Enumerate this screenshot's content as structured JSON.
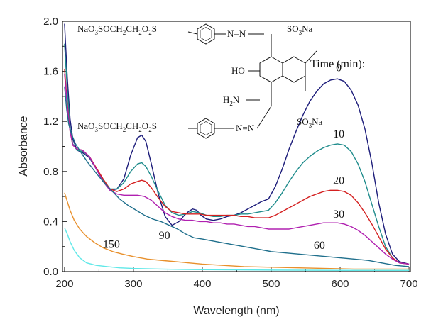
{
  "chart_data": {
    "type": "line",
    "title": "",
    "xlabel": "Wavelength (nm)",
    "ylabel": "Absorbance",
    "xlim": [
      197,
      702
    ],
    "ylim": [
      0.0,
      2.0
    ],
    "xticks": [
      "200",
      "300",
      "400",
      "500",
      "600",
      "700"
    ],
    "yticks": [
      "0.0",
      "0.4",
      "0.8",
      "1.2",
      "1.6",
      "2.0"
    ],
    "grid": false,
    "legend_title": "Time (min):",
    "series": [
      {
        "name": "0",
        "color": "#1c1c7a",
        "points": [
          [
            200,
            1.98
          ],
          [
            204,
            1.55
          ],
          [
            208,
            1.22
          ],
          [
            212,
            1.06
          ],
          [
            218,
            0.97
          ],
          [
            226,
            0.95
          ],
          [
            236,
            0.91
          ],
          [
            246,
            0.82
          ],
          [
            256,
            0.72
          ],
          [
            266,
            0.65
          ],
          [
            276,
            0.66
          ],
          [
            286,
            0.74
          ],
          [
            296,
            0.93
          ],
          [
            306,
            1.07
          ],
          [
            312,
            1.09
          ],
          [
            318,
            1.04
          ],
          [
            326,
            0.86
          ],
          [
            336,
            0.62
          ],
          [
            346,
            0.44
          ],
          [
            356,
            0.37
          ],
          [
            366,
            0.4
          ],
          [
            374,
            0.45
          ],
          [
            380,
            0.48
          ],
          [
            386,
            0.5
          ],
          [
            392,
            0.49
          ],
          [
            398,
            0.45
          ],
          [
            406,
            0.42
          ],
          [
            416,
            0.41
          ],
          [
            426,
            0.42
          ],
          [
            436,
            0.44
          ],
          [
            446,
            0.45
          ],
          [
            456,
            0.47
          ],
          [
            466,
            0.5
          ],
          [
            476,
            0.53
          ],
          [
            486,
            0.56
          ],
          [
            496,
            0.58
          ],
          [
            506,
            0.68
          ],
          [
            516,
            0.82
          ],
          [
            526,
            0.98
          ],
          [
            536,
            1.12
          ],
          [
            546,
            1.25
          ],
          [
            556,
            1.36
          ],
          [
            566,
            1.44
          ],
          [
            576,
            1.5
          ],
          [
            586,
            1.53
          ],
          [
            596,
            1.54
          ],
          [
            606,
            1.52
          ],
          [
            616,
            1.45
          ],
          [
            626,
            1.33
          ],
          [
            636,
            1.14
          ],
          [
            646,
            0.87
          ],
          [
            656,
            0.55
          ],
          [
            666,
            0.3
          ],
          [
            676,
            0.14
          ],
          [
            686,
            0.08
          ],
          [
            700,
            0.06
          ]
        ]
      },
      {
        "name": "10",
        "color": "#1f8c8c",
        "points": [
          [
            200,
            1.82
          ],
          [
            204,
            1.45
          ],
          [
            208,
            1.15
          ],
          [
            212,
            1.02
          ],
          [
            218,
            0.97
          ],
          [
            226,
            0.96
          ],
          [
            236,
            0.92
          ],
          [
            246,
            0.82
          ],
          [
            256,
            0.73
          ],
          [
            266,
            0.66
          ],
          [
            276,
            0.66
          ],
          [
            286,
            0.71
          ],
          [
            296,
            0.8
          ],
          [
            306,
            0.86
          ],
          [
            312,
            0.87
          ],
          [
            318,
            0.84
          ],
          [
            326,
            0.76
          ],
          [
            336,
            0.64
          ],
          [
            346,
            0.53
          ],
          [
            356,
            0.47
          ],
          [
            366,
            0.45
          ],
          [
            376,
            0.46
          ],
          [
            386,
            0.48
          ],
          [
            396,
            0.47
          ],
          [
            406,
            0.45
          ],
          [
            416,
            0.44
          ],
          [
            426,
            0.44
          ],
          [
            436,
            0.45
          ],
          [
            446,
            0.45
          ],
          [
            456,
            0.46
          ],
          [
            466,
            0.46
          ],
          [
            476,
            0.47
          ],
          [
            486,
            0.48
          ],
          [
            496,
            0.49
          ],
          [
            506,
            0.55
          ],
          [
            516,
            0.63
          ],
          [
            526,
            0.72
          ],
          [
            536,
            0.8
          ],
          [
            546,
            0.87
          ],
          [
            556,
            0.92
          ],
          [
            566,
            0.96
          ],
          [
            576,
            0.99
          ],
          [
            586,
            1.01
          ],
          [
            596,
            1.02
          ],
          [
            606,
            1.01
          ],
          [
            616,
            0.96
          ],
          [
            626,
            0.86
          ],
          [
            636,
            0.72
          ],
          [
            646,
            0.54
          ],
          [
            656,
            0.36
          ],
          [
            666,
            0.2
          ],
          [
            676,
            0.11
          ],
          [
            686,
            0.07
          ],
          [
            700,
            0.06
          ]
        ]
      },
      {
        "name": "20",
        "color": "#d42020",
        "points": [
          [
            200,
            1.62
          ],
          [
            204,
            1.34
          ],
          [
            208,
            1.12
          ],
          [
            212,
            1.01
          ],
          [
            218,
            0.98
          ],
          [
            226,
            0.97
          ],
          [
            236,
            0.92
          ],
          [
            246,
            0.83
          ],
          [
            256,
            0.74
          ],
          [
            266,
            0.66
          ],
          [
            276,
            0.64
          ],
          [
            286,
            0.66
          ],
          [
            296,
            0.7
          ],
          [
            306,
            0.72
          ],
          [
            312,
            0.73
          ],
          [
            318,
            0.72
          ],
          [
            326,
            0.67
          ],
          [
            336,
            0.59
          ],
          [
            346,
            0.52
          ],
          [
            356,
            0.48
          ],
          [
            366,
            0.47
          ],
          [
            376,
            0.46
          ],
          [
            386,
            0.46
          ],
          [
            396,
            0.46
          ],
          [
            406,
            0.45
          ],
          [
            416,
            0.45
          ],
          [
            426,
            0.45
          ],
          [
            436,
            0.45
          ],
          [
            446,
            0.45
          ],
          [
            456,
            0.44
          ],
          [
            466,
            0.44
          ],
          [
            476,
            0.43
          ],
          [
            486,
            0.43
          ],
          [
            496,
            0.43
          ],
          [
            506,
            0.45
          ],
          [
            516,
            0.48
          ],
          [
            526,
            0.51
          ],
          [
            536,
            0.54
          ],
          [
            546,
            0.57
          ],
          [
            556,
            0.6
          ],
          [
            566,
            0.62
          ],
          [
            576,
            0.64
          ],
          [
            586,
            0.65
          ],
          [
            596,
            0.65
          ],
          [
            606,
            0.64
          ],
          [
            616,
            0.61
          ],
          [
            626,
            0.55
          ],
          [
            636,
            0.47
          ],
          [
            646,
            0.38
          ],
          [
            656,
            0.28
          ],
          [
            666,
            0.18
          ],
          [
            676,
            0.11
          ],
          [
            686,
            0.07
          ],
          [
            700,
            0.06
          ]
        ]
      },
      {
        "name": "30",
        "color": "#b020b0",
        "points": [
          [
            200,
            1.58
          ],
          [
            204,
            1.32
          ],
          [
            208,
            1.12
          ],
          [
            212,
            1.01
          ],
          [
            218,
            0.98
          ],
          [
            226,
            0.97
          ],
          [
            236,
            0.92
          ],
          [
            246,
            0.82
          ],
          [
            256,
            0.72
          ],
          [
            266,
            0.65
          ],
          [
            276,
            0.62
          ],
          [
            286,
            0.61
          ],
          [
            296,
            0.61
          ],
          [
            306,
            0.61
          ],
          [
            316,
            0.6
          ],
          [
            326,
            0.57
          ],
          [
            336,
            0.52
          ],
          [
            346,
            0.47
          ],
          [
            356,
            0.44
          ],
          [
            366,
            0.42
          ],
          [
            376,
            0.41
          ],
          [
            386,
            0.41
          ],
          [
            396,
            0.4
          ],
          [
            406,
            0.4
          ],
          [
            416,
            0.39
          ],
          [
            426,
            0.39
          ],
          [
            436,
            0.38
          ],
          [
            446,
            0.38
          ],
          [
            456,
            0.37
          ],
          [
            466,
            0.36
          ],
          [
            476,
            0.36
          ],
          [
            486,
            0.35
          ],
          [
            496,
            0.34
          ],
          [
            506,
            0.34
          ],
          [
            516,
            0.34
          ],
          [
            526,
            0.34
          ],
          [
            536,
            0.35
          ],
          [
            546,
            0.36
          ],
          [
            556,
            0.37
          ],
          [
            566,
            0.38
          ],
          [
            576,
            0.39
          ],
          [
            586,
            0.39
          ],
          [
            596,
            0.39
          ],
          [
            606,
            0.38
          ],
          [
            616,
            0.36
          ],
          [
            626,
            0.33
          ],
          [
            636,
            0.29
          ],
          [
            646,
            0.24
          ],
          [
            656,
            0.19
          ],
          [
            666,
            0.14
          ],
          [
            676,
            0.1
          ],
          [
            686,
            0.07
          ],
          [
            700,
            0.06
          ]
        ]
      },
      {
        "name": "60",
        "color": "#1f6f8c",
        "points": [
          [
            200,
            1.48
          ],
          [
            203,
            1.3
          ],
          [
            206,
            1.18
          ],
          [
            210,
            1.1
          ],
          [
            216,
            1.02
          ],
          [
            224,
            0.95
          ],
          [
            234,
            0.87
          ],
          [
            244,
            0.8
          ],
          [
            256,
            0.72
          ],
          [
            268,
            0.65
          ],
          [
            280,
            0.58
          ],
          [
            292,
            0.53
          ],
          [
            304,
            0.49
          ],
          [
            316,
            0.45
          ],
          [
            328,
            0.42
          ],
          [
            340,
            0.4
          ],
          [
            352,
            0.37
          ],
          [
            364,
            0.34
          ],
          [
            376,
            0.3
          ],
          [
            388,
            0.27
          ],
          [
            400,
            0.26
          ],
          [
            420,
            0.24
          ],
          [
            440,
            0.22
          ],
          [
            460,
            0.2
          ],
          [
            480,
            0.18
          ],
          [
            500,
            0.16
          ],
          [
            520,
            0.15
          ],
          [
            540,
            0.14
          ],
          [
            560,
            0.13
          ],
          [
            580,
            0.12
          ],
          [
            600,
            0.11
          ],
          [
            620,
            0.1
          ],
          [
            640,
            0.09
          ],
          [
            660,
            0.07
          ],
          [
            680,
            0.05
          ],
          [
            700,
            0.04
          ]
        ]
      },
      {
        "name": "90",
        "color": "#e8902c",
        "points": [
          [
            200,
            0.63
          ],
          [
            204,
            0.56
          ],
          [
            208,
            0.49
          ],
          [
            214,
            0.41
          ],
          [
            222,
            0.34
          ],
          [
            232,
            0.28
          ],
          [
            244,
            0.23
          ],
          [
            256,
            0.19
          ],
          [
            270,
            0.16
          ],
          [
            284,
            0.14
          ],
          [
            300,
            0.12
          ],
          [
            320,
            0.1
          ],
          [
            340,
            0.09
          ],
          [
            360,
            0.08
          ],
          [
            380,
            0.07
          ],
          [
            400,
            0.06
          ],
          [
            430,
            0.05
          ],
          [
            460,
            0.04
          ],
          [
            500,
            0.035
          ],
          [
            540,
            0.03
          ],
          [
            580,
            0.025
          ],
          [
            620,
            0.02
          ],
          [
            660,
            0.02
          ],
          [
            700,
            0.02
          ]
        ]
      },
      {
        "name": "150",
        "color": "#5fe8e8",
        "points": [
          [
            200,
            0.35
          ],
          [
            204,
            0.3
          ],
          [
            208,
            0.24
          ],
          [
            214,
            0.17
          ],
          [
            222,
            0.11
          ],
          [
            232,
            0.07
          ],
          [
            246,
            0.05
          ],
          [
            262,
            0.04
          ],
          [
            280,
            0.03
          ],
          [
            300,
            0.025
          ],
          [
            340,
            0.02
          ],
          [
            400,
            0.015
          ],
          [
            500,
            0.012
          ],
          [
            600,
            0.01
          ],
          [
            700,
            0.01
          ]
        ]
      }
    ],
    "curve_labels": [
      {
        "series": "0",
        "text": "0",
        "x": 598,
        "y": 1.6
      },
      {
        "series": "10",
        "text": "10",
        "x": 598,
        "y": 1.07
      },
      {
        "series": "20",
        "text": "20",
        "x": 598,
        "y": 0.7
      },
      {
        "series": "30",
        "text": "30",
        "x": 598,
        "y": 0.43
      },
      {
        "series": "60",
        "text": "60",
        "x": 570,
        "y": 0.18
      },
      {
        "series": "90",
        "text": "90",
        "x": 345,
        "y": 0.26
      },
      {
        "series": "150",
        "text": "150",
        "x": 268,
        "y": 0.19
      }
    ]
  },
  "structure": {
    "top_chain_prefix": "NaO",
    "top_chain_sub1": "3",
    "top_chain_mid": "SOCH",
    "top_chain_sub2": "2",
    "top_chain_mid2": "CH",
    "top_chain_sub3": "2",
    "top_chain_mid3": "O",
    "top_chain_sub4": "2",
    "top_chain_end": "S",
    "bottom_chain_prefix": "NaO",
    "bottom_chain_sub1": "3",
    "bottom_chain_mid": "SOCH",
    "bottom_chain_sub2": "2",
    "bottom_chain_mid2": "CH",
    "bottom_chain_sub3": "2",
    "bottom_chain_mid3": "O",
    "bottom_chain_sub4": "2",
    "bottom_chain_end": "S",
    "azo_top": "N=N",
    "azo_bottom": "N=N",
    "hydroxy": "HO",
    "amino_prefix": "H",
    "amino_sub": "2",
    "amino_end": "N",
    "sulfonate_top_prefix": "SO",
    "sulfonate_top_sub": "3",
    "sulfonate_top_end": "Na",
    "sulfonate_bottom_prefix": "SO",
    "sulfonate_bottom_sub": "3",
    "sulfonate_bottom_end": "Na"
  }
}
